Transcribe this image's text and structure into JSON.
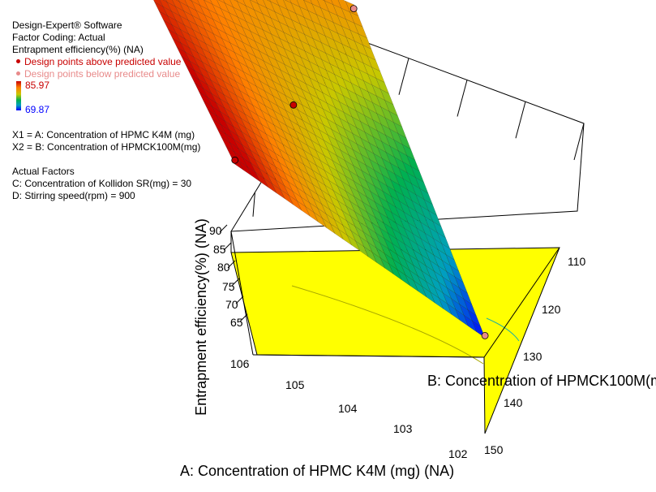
{
  "header": {
    "software": "Design-Expert® Software",
    "coding": "Factor Coding: Actual",
    "response": "Entrapment efficiency(%) (NA)"
  },
  "legend": {
    "above_label": "Design points above predicted value",
    "below_label": "Design points below predicted value",
    "above_color": "#c80000",
    "below_color": "#e88a8a",
    "color_max": "85.97",
    "color_min": "69.87"
  },
  "factors": {
    "x1": "X1 = A: Concentration of HPMC K4M (mg)",
    "x2": "X2 = B: Concentration of HPMCK100M(mg)",
    "actual_title": "Actual Factors",
    "c": "C: Concentration of Kollidon SR(mg) = 30",
    "d": "D: Stirring speed(rpm) = 900"
  },
  "chart_data": {
    "type": "surface",
    "x": {
      "label": "A: Concentration of HPMC K4M (mg) (NA)",
      "range": [
        102,
        106
      ],
      "ticks": [
        "102",
        "103",
        "104",
        "105",
        "106"
      ]
    },
    "y": {
      "label": "B: Concentration of HPMCK100M(mg) (NA)",
      "range": [
        110,
        150
      ],
      "ticks": [
        "110",
        "120",
        "130",
        "140",
        "150"
      ]
    },
    "z": {
      "label": "Entrapment efficiency(%) (NA)",
      "range": [
        65,
        90
      ],
      "ticks": [
        "65",
        "70",
        "75",
        "80",
        "85",
        "90"
      ]
    },
    "surface_corners": [
      {
        "a": 106,
        "b": 150,
        "value": 83.5
      },
      {
        "a": 102,
        "b": 150,
        "value": 82.0
      },
      {
        "a": 106,
        "b": 110,
        "value": 87.5
      },
      {
        "a": 102,
        "b": 110,
        "value": 70.0
      }
    ],
    "design_points": [
      {
        "a": 106,
        "b": 110,
        "value": 88.5,
        "type": "above"
      },
      {
        "a": 104,
        "b": 130,
        "value": 79.5,
        "type": "above"
      },
      {
        "a": 102,
        "b": 110,
        "value": 70.5,
        "type": "below"
      },
      {
        "a": 106,
        "b": 150,
        "value": 84.0,
        "type": "below"
      },
      {
        "a": 102,
        "b": 150,
        "value": 81.0,
        "type": "below"
      }
    ],
    "floor_color": "#ffff00",
    "colormap": [
      "#0000ff",
      "#00a0c0",
      "#00b050",
      "#c8c800",
      "#ff8000",
      "#c80000"
    ]
  }
}
